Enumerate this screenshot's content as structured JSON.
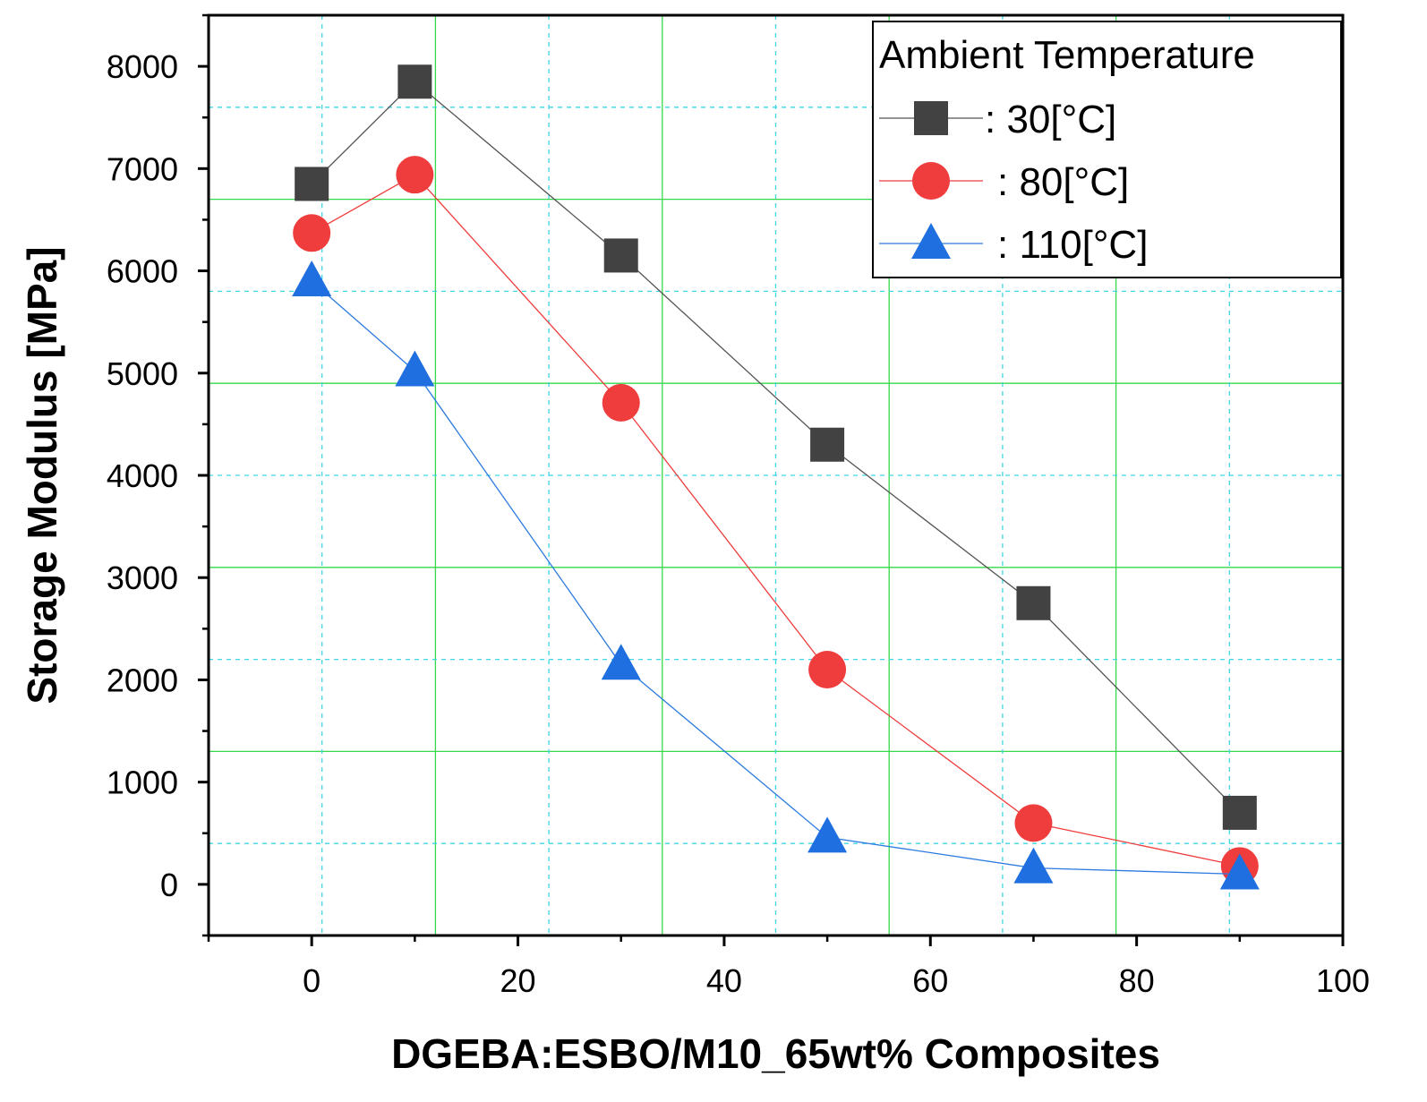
{
  "chart_data": {
    "type": "line",
    "title": "",
    "xlabel": "DGEBA:ESBO/M10_65wt% Composites",
    "ylabel": "Storage Modulus [MPa]",
    "xlim": [
      -10,
      100
    ],
    "ylim": [
      -500,
      8500
    ],
    "x_ticks": [
      0,
      20,
      40,
      60,
      80,
      100
    ],
    "x_tick_labels": [
      "0",
      "20",
      "40",
      "60",
      "80",
      "100"
    ],
    "y_ticks": [
      0,
      1000,
      2000,
      3000,
      4000,
      5000,
      6000,
      7000,
      8000
    ],
    "y_tick_labels": [
      "0",
      "1000",
      "2000",
      "3000",
      "4000",
      "5000",
      "6000",
      "7000",
      "8000"
    ],
    "grid": true,
    "legend_position": "top-right",
    "legend_title": "Ambient Temperature",
    "x": [
      0,
      10,
      30,
      50,
      70,
      90
    ],
    "series": [
      {
        "name": ": 30[°C]",
        "marker": "square",
        "color": "#424242",
        "line_color": "#555555",
        "values": [
          6850,
          7850,
          6150,
          4300,
          2750,
          700
        ]
      },
      {
        "name": ": 80[°C]",
        "marker": "circle",
        "color": "#ef3c3c",
        "line_color": "#ef3c3c",
        "values": [
          6370,
          6940,
          4710,
          2100,
          600,
          180
        ]
      },
      {
        "name": ": 110[°C]",
        "marker": "triangle",
        "color": "#1f6fe0",
        "line_color": "#2d7be0",
        "values": [
          5900,
          5020,
          2150,
          460,
          160,
          100
        ]
      }
    ]
  }
}
